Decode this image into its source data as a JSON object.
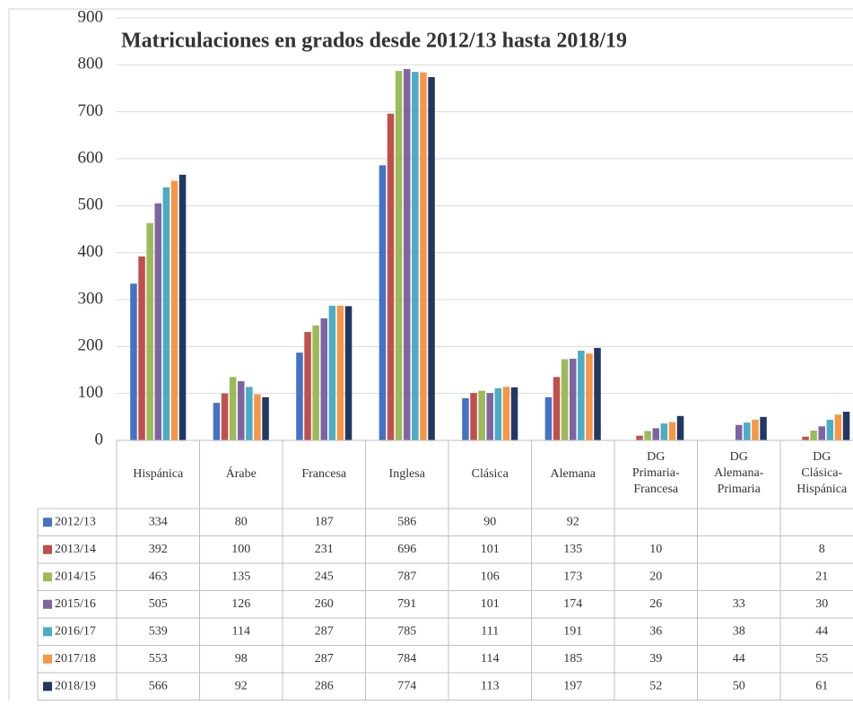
{
  "chart_data": {
    "type": "bar",
    "title": "Matriculaciones en grados desde 2012/13 hasta 2018/19",
    "categories": [
      "Hispánica",
      "Árabe",
      "Francesa",
      "Inglesa",
      "Clásica",
      "Alemana",
      "DG Primaria-Francesa",
      "DG Alemana-Primaria",
      "DG Clásica-Hispánica"
    ],
    "series": [
      {
        "name": "2012/13",
        "color": "#4472c4",
        "values": [
          334,
          80,
          187,
          586,
          90,
          92,
          null,
          null,
          null
        ]
      },
      {
        "name": "2013/14",
        "color": "#c0504d",
        "values": [
          392,
          100,
          231,
          696,
          101,
          135,
          10,
          null,
          8
        ]
      },
      {
        "name": "2014/15",
        "color": "#9bbb59",
        "values": [
          463,
          135,
          245,
          787,
          106,
          173,
          20,
          null,
          21
        ]
      },
      {
        "name": "2015/16",
        "color": "#8064a2",
        "values": [
          505,
          126,
          260,
          791,
          101,
          174,
          26,
          33,
          30
        ]
      },
      {
        "name": "2016/17",
        "color": "#4bacc6",
        "values": [
          539,
          114,
          287,
          785,
          111,
          191,
          36,
          38,
          44
        ]
      },
      {
        "name": "2017/18",
        "color": "#f79646",
        "values": [
          553,
          98,
          287,
          784,
          114,
          185,
          39,
          44,
          55
        ]
      },
      {
        "name": "2018/19",
        "color": "#1f3864",
        "values": [
          566,
          92,
          286,
          774,
          113,
          197,
          52,
          50,
          61
        ]
      }
    ],
    "ylim": [
      0,
      900
    ],
    "yticks": [
      0,
      100,
      200,
      300,
      400,
      500,
      600,
      700,
      800,
      900
    ],
    "grid": true
  }
}
